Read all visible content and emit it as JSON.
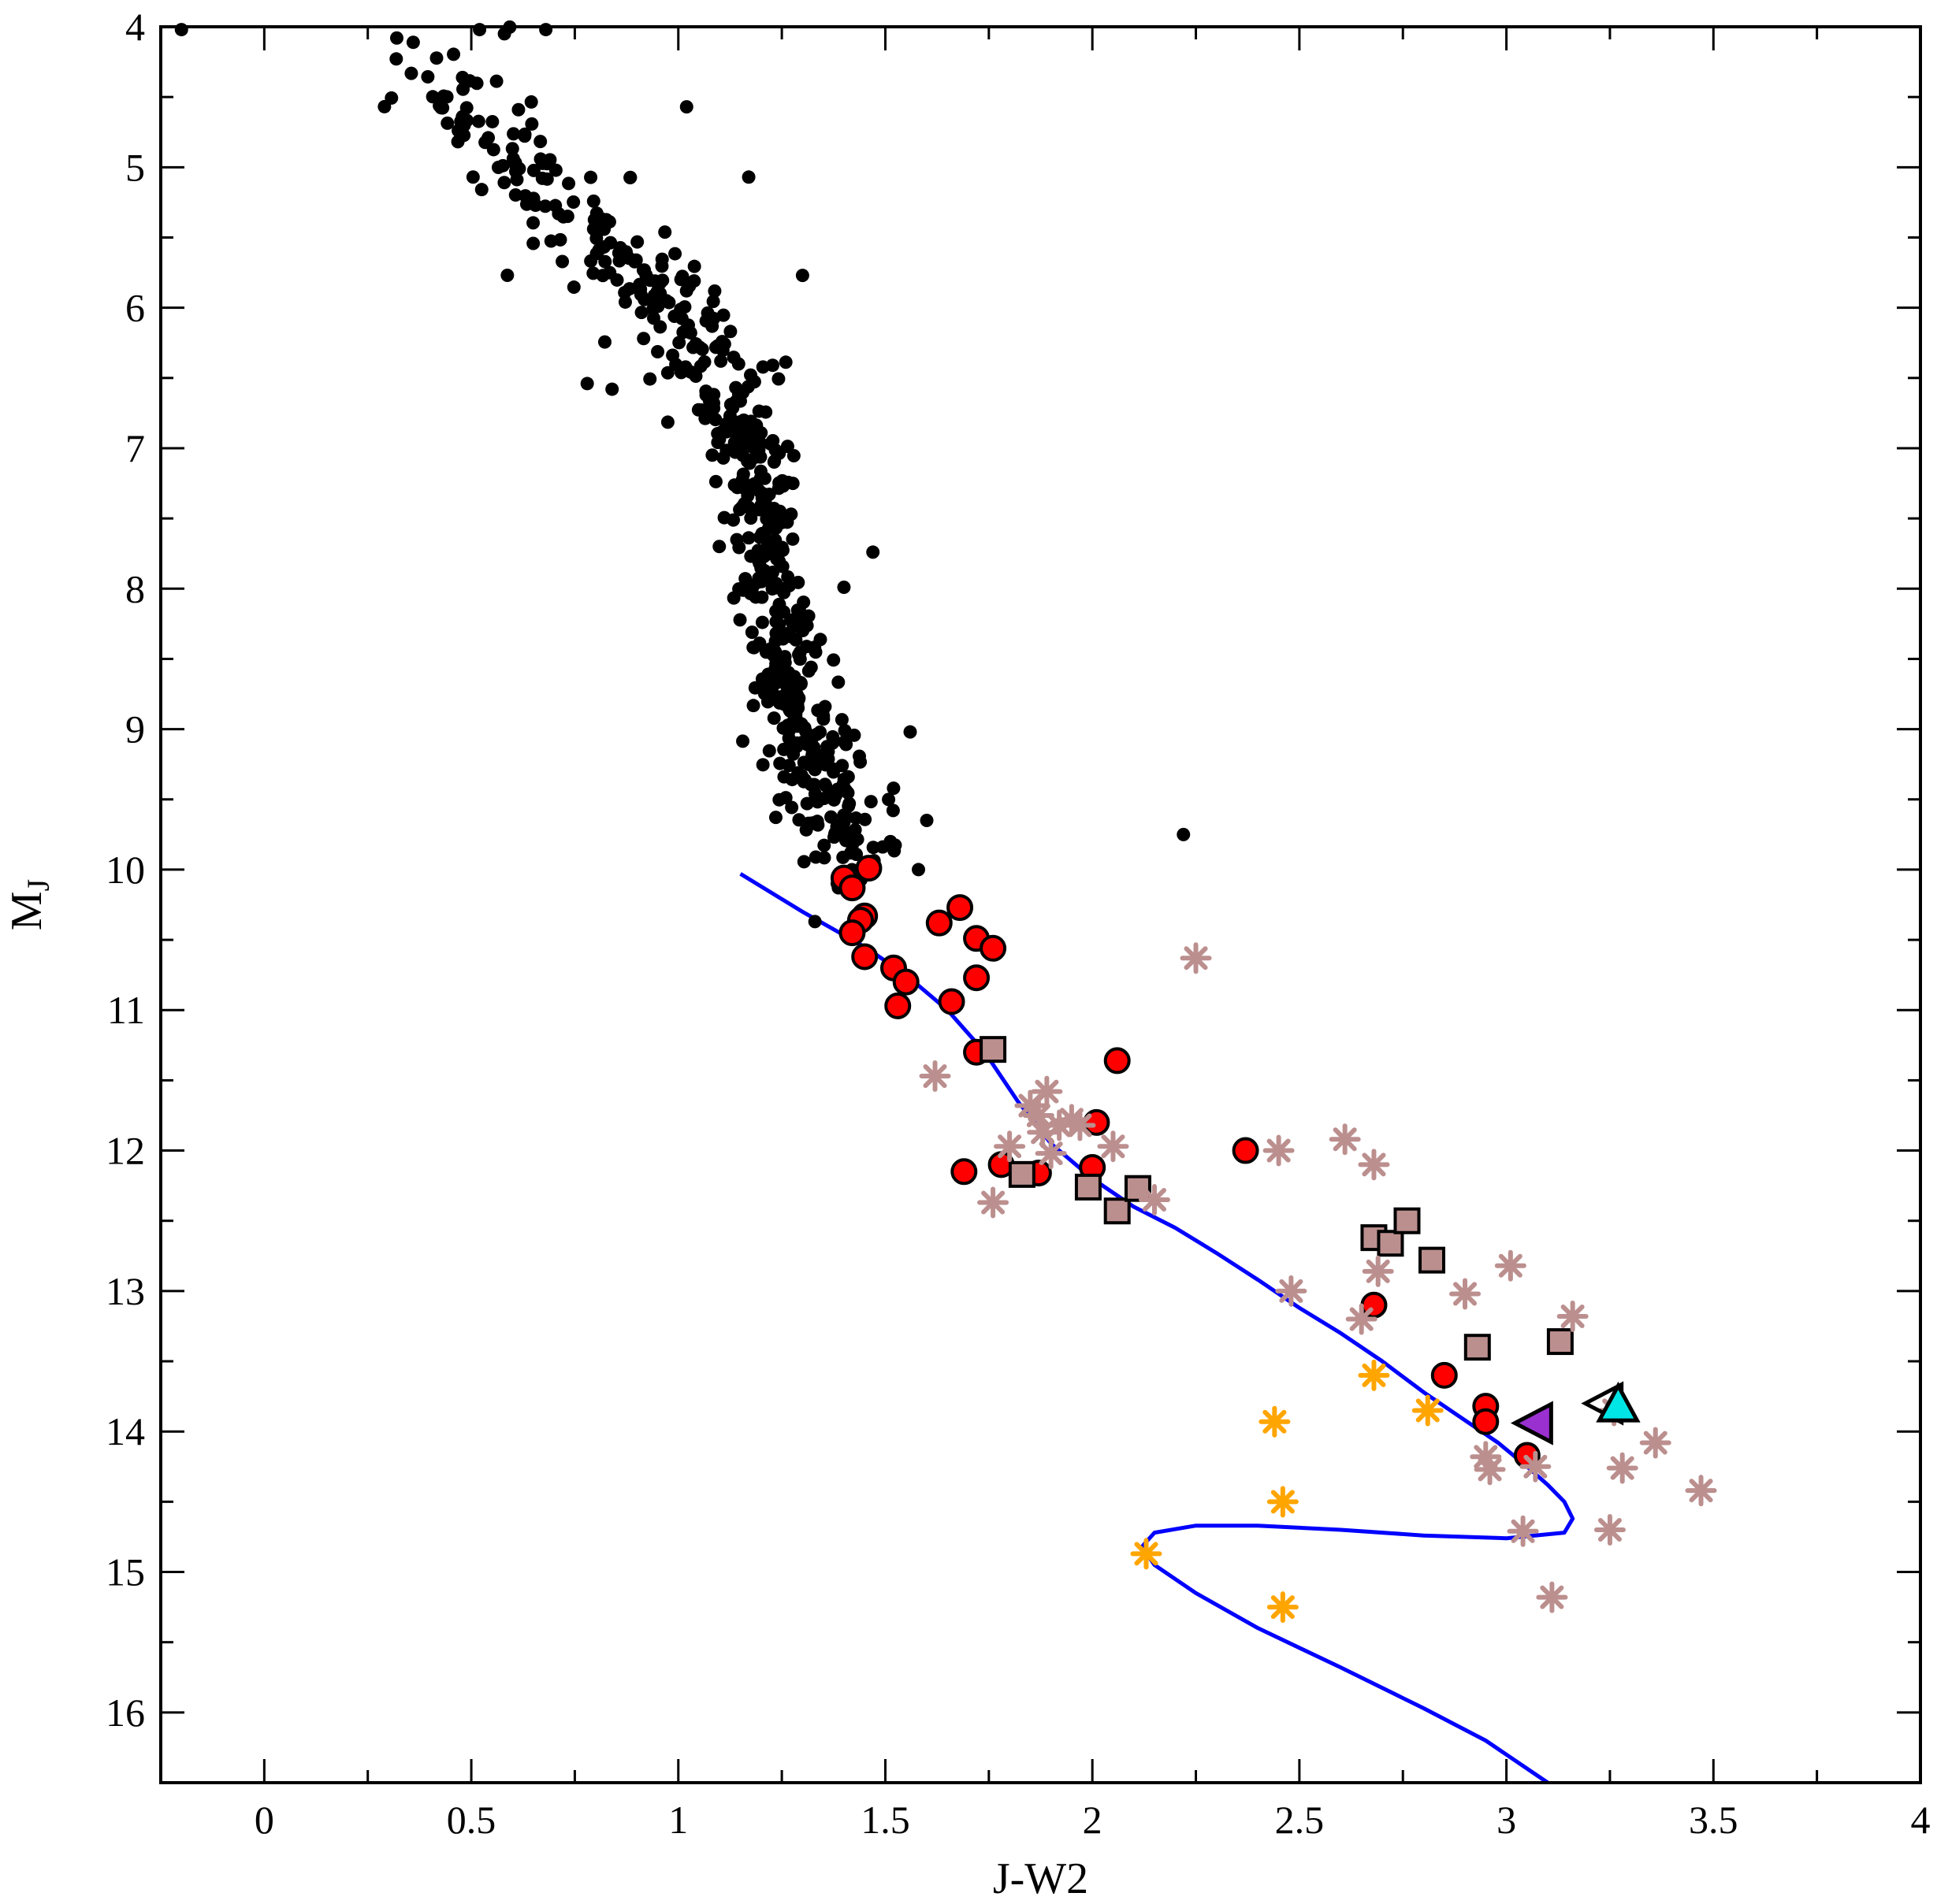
{
  "chart_data": {
    "type": "scatter",
    "title": "",
    "xlabel": "J-W2",
    "ylabel": {
      "main": "M",
      "sub": "J"
    },
    "xlim": [
      -0.25,
      4.0
    ],
    "ylim": [
      16.5,
      4.0
    ],
    "y_inverted": true,
    "grid": false,
    "legend": "none",
    "x_ticks": [
      0,
      0.5,
      1,
      1.5,
      2,
      2.5,
      3,
      3.5,
      4
    ],
    "x_tick_labels": [
      "0",
      "0.5",
      "1",
      "1.5",
      "2",
      "2.5",
      "3",
      "3.5",
      "4"
    ],
    "x_minor_ticks": [
      0.25,
      0.75,
      1.25,
      1.75,
      2.25,
      2.75,
      3.25,
      3.75
    ],
    "y_ticks": [
      4,
      5,
      6,
      7,
      8,
      9,
      10,
      11,
      12,
      13,
      14,
      15,
      16
    ],
    "y_tick_labels": [
      "4",
      "5",
      "6",
      "7",
      "8",
      "9",
      "10",
      "11",
      "12",
      "13",
      "14",
      "15",
      "16"
    ],
    "y_minor_ticks": [
      4.5,
      5.5,
      6.5,
      7.5,
      8.5,
      9.5,
      10.5,
      11.5,
      12.5,
      13.5,
      14.5,
      15.5,
      16.5
    ],
    "colors": {
      "black_dots": "#000000",
      "red_circles": "#ff0000",
      "rosy_squares": "#bc8f8f",
      "rosy_stars": "#bc8f8f",
      "orange_stars": "#ffa500",
      "purple_triangle": "#9b30d0",
      "cyan_triangle": "#00e5e5",
      "curve": "#0000ff"
    },
    "series": [
      {
        "marker": "small-black-dot",
        "generated": {
          "count": 620,
          "seed": 24681,
          "anchors": [
            [
              0.35,
              4.1
            ],
            [
              0.55,
              4.8
            ],
            [
              0.75,
              5.4
            ],
            [
              0.95,
              5.9
            ],
            [
              1.05,
              6.3
            ],
            [
              1.15,
              6.8
            ],
            [
              1.2,
              7.3
            ],
            [
              1.22,
              7.9
            ],
            [
              1.25,
              8.5
            ],
            [
              1.3,
              9.0
            ],
            [
              1.35,
              9.5
            ],
            [
              1.45,
              10.0
            ]
          ],
          "spread_x": 0.055,
          "spread_y": 0.22
        },
        "points": [
          [
            -0.2,
            4.02
          ],
          [
            0.32,
            4.08
          ],
          [
            0.52,
            4.02
          ],
          [
            0.58,
            4.05
          ],
          [
            0.68,
            4.02
          ],
          [
            1.02,
            4.57
          ],
          [
            1.17,
            5.07
          ],
          [
            1.3,
            5.77
          ],
          [
            0.78,
            6.54
          ],
          [
            0.84,
            6.58
          ],
          [
            1.33,
            10.37
          ],
          [
            1.56,
            9.02
          ],
          [
            1.6,
            9.65
          ],
          [
            1.58,
            10.0
          ],
          [
            1.47,
            7.74
          ],
          [
            1.4,
            7.99
          ],
          [
            2.22,
            9.75
          ]
        ]
      },
      {
        "marker": "red-circle",
        "points": [
          [
            1.4,
            10.06
          ],
          [
            1.42,
            10.13
          ],
          [
            1.46,
            9.99
          ],
          [
            1.45,
            10.33
          ],
          [
            1.44,
            10.36
          ],
          [
            1.42,
            10.45
          ],
          [
            1.45,
            10.62
          ],
          [
            1.52,
            10.7
          ],
          [
            1.55,
            10.8
          ],
          [
            1.53,
            10.97
          ],
          [
            1.63,
            10.38
          ],
          [
            1.68,
            10.27
          ],
          [
            1.72,
            10.49
          ],
          [
            1.76,
            10.56
          ],
          [
            1.72,
            10.77
          ],
          [
            1.66,
            10.94
          ],
          [
            1.72,
            11.3
          ],
          [
            2.06,
            11.36
          ],
          [
            2.01,
            11.8
          ],
          [
            1.69,
            12.15
          ],
          [
            1.78,
            12.1
          ],
          [
            1.87,
            12.16
          ],
          [
            2.0,
            12.12
          ],
          [
            2.37,
            12.0
          ],
          [
            2.68,
            13.1
          ],
          [
            2.85,
            13.6
          ],
          [
            2.95,
            13.82
          ],
          [
            2.95,
            13.93
          ],
          [
            3.05,
            14.17
          ]
        ]
      },
      {
        "marker": "rosy-square",
        "points": [
          [
            1.76,
            11.28
          ],
          [
            1.83,
            12.17
          ],
          [
            1.99,
            12.26
          ],
          [
            2.06,
            12.43
          ],
          [
            2.11,
            12.27
          ],
          [
            2.68,
            12.62
          ],
          [
            2.72,
            12.66
          ],
          [
            2.76,
            12.5
          ],
          [
            2.82,
            12.78
          ],
          [
            2.93,
            13.4
          ],
          [
            3.13,
            13.36
          ]
        ]
      },
      {
        "marker": "rosy-star",
        "points": [
          [
            1.62,
            11.47
          ],
          [
            1.8,
            11.97
          ],
          [
            1.76,
            12.37
          ],
          [
            1.85,
            11.68
          ],
          [
            1.87,
            11.75
          ],
          [
            1.89,
            11.58
          ],
          [
            1.88,
            11.87
          ],
          [
            1.92,
            11.82
          ],
          [
            1.95,
            11.78
          ],
          [
            1.97,
            11.82
          ],
          [
            1.9,
            12.02
          ],
          [
            2.05,
            11.97
          ],
          [
            2.15,
            12.35
          ],
          [
            2.25,
            10.63
          ],
          [
            2.45,
            12.0
          ],
          [
            2.48,
            13.0
          ],
          [
            2.61,
            11.92
          ],
          [
            2.68,
            12.1
          ],
          [
            2.65,
            13.2
          ],
          [
            2.69,
            12.86
          ],
          [
            2.9,
            13.02
          ],
          [
            3.01,
            12.82
          ],
          [
            3.16,
            13.18
          ],
          [
            2.95,
            14.18
          ],
          [
            2.96,
            14.27
          ],
          [
            3.07,
            14.25
          ],
          [
            3.26,
            13.85
          ],
          [
            3.28,
            14.26
          ],
          [
            3.36,
            14.08
          ],
          [
            3.25,
            14.7
          ],
          [
            3.04,
            14.71
          ],
          [
            3.11,
            15.18
          ],
          [
            3.47,
            14.42
          ]
        ]
      },
      {
        "marker": "orange-star",
        "points": [
          [
            2.44,
            13.93
          ],
          [
            2.68,
            13.6
          ],
          [
            2.81,
            13.85
          ],
          [
            2.46,
            14.5
          ],
          [
            2.13,
            14.87
          ],
          [
            2.46,
            15.25
          ]
        ]
      },
      {
        "marker": "purple-triangle-left",
        "points": [
          [
            3.07,
            13.94
          ]
        ]
      },
      {
        "marker": "black-outline-triangle-left",
        "points": [
          [
            3.24,
            13.8
          ]
        ]
      },
      {
        "marker": "cyan-triangle-up",
        "points": [
          [
            3.27,
            13.82
          ]
        ]
      }
    ],
    "curves": [
      {
        "style": "blue-line",
        "points": [
          [
            1.15,
            10.03
          ],
          [
            1.3,
            10.3
          ],
          [
            1.45,
            10.55
          ],
          [
            1.55,
            10.75
          ],
          [
            1.65,
            11.0
          ],
          [
            1.74,
            11.3
          ],
          [
            1.82,
            11.65
          ],
          [
            1.9,
            11.95
          ],
          [
            2.0,
            12.2
          ],
          [
            2.1,
            12.4
          ],
          [
            2.2,
            12.55
          ],
          [
            2.3,
            12.73
          ],
          [
            2.4,
            12.92
          ],
          [
            2.5,
            13.12
          ],
          [
            2.6,
            13.3
          ],
          [
            2.7,
            13.5
          ],
          [
            2.8,
            13.72
          ],
          [
            2.9,
            13.92
          ],
          [
            2.98,
            14.08
          ],
          [
            3.05,
            14.25
          ],
          [
            3.1,
            14.38
          ],
          [
            3.14,
            14.5
          ],
          [
            3.16,
            14.62
          ],
          [
            3.14,
            14.72
          ],
          [
            3.0,
            14.76
          ],
          [
            2.8,
            14.74
          ],
          [
            2.6,
            14.7
          ],
          [
            2.4,
            14.67
          ],
          [
            2.25,
            14.67
          ],
          [
            2.15,
            14.72
          ],
          [
            2.12,
            14.82
          ],
          [
            2.15,
            14.95
          ],
          [
            2.25,
            15.15
          ],
          [
            2.4,
            15.4
          ],
          [
            2.6,
            15.68
          ],
          [
            2.8,
            15.97
          ],
          [
            2.95,
            16.2
          ],
          [
            3.1,
            16.5
          ]
        ]
      }
    ]
  }
}
